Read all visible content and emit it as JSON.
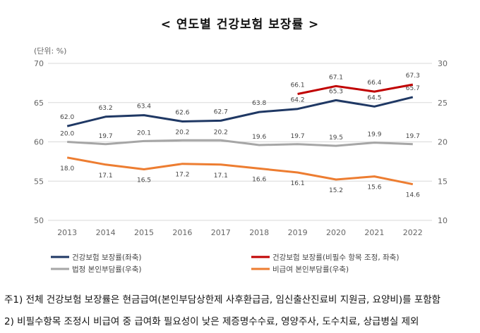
{
  "title": "< 연도별 건강보험 보장률 >",
  "notes": [
    "주1) 전체 건강보험 보장률은 현금급여(본인부담상한제 사후환급금, 임신출산진료비 지원금, 요양비)를 포함함",
    "2) 비필수항목 조정시 비급여 중 급여화 필요성이 낮은 제증명수수료, 영양주사, 도수치료, 상급병실 제외"
  ],
  "chart_data": {
    "type": "line",
    "unit_label": "(단위: %)",
    "x": [
      "2013",
      "2014",
      "2015",
      "2016",
      "2017",
      "2018",
      "2019",
      "2020",
      "2021",
      "2022"
    ],
    "left_axis": {
      "range": [
        50,
        70
      ],
      "ticks": [
        "50",
        "55",
        "60",
        "65",
        "70"
      ]
    },
    "right_axis": {
      "range": [
        10,
        30
      ],
      "ticks": [
        "10",
        "15",
        "20",
        "25",
        "30"
      ]
    },
    "series": [
      {
        "name": "건강보험 보장률(좌축)",
        "axis": "left",
        "color": "#1f3864",
        "values": [
          62.0,
          63.2,
          63.4,
          62.6,
          62.7,
          63.8,
          64.2,
          65.3,
          64.5,
          65.7
        ],
        "labels": [
          "62.0",
          "63.2",
          "63.4",
          "62.6",
          "62.7",
          "63.8",
          "64.2",
          "65.3",
          "64.5",
          "65.7"
        ]
      },
      {
        "name": "건강보험 보장률(비필수 항목 조정, 좌축)",
        "axis": "left",
        "color": "#c00000",
        "values": [
          null,
          null,
          null,
          null,
          null,
          null,
          66.1,
          67.1,
          66.4,
          67.3
        ],
        "labels": [
          "",
          "",
          "",
          "",
          "",
          "",
          "66.1",
          "67.1",
          "66.4",
          "67.3"
        ]
      },
      {
        "name": "법정 본인부담률(우축)",
        "axis": "right",
        "color": "#a6a6a6",
        "values": [
          20.0,
          19.7,
          20.1,
          20.2,
          20.2,
          19.6,
          19.7,
          19.5,
          19.9,
          19.7
        ],
        "labels": [
          "20.0",
          "19.7",
          "20.1",
          "20.2",
          "20.2",
          "19.6",
          "19.7",
          "19.5",
          "19.9",
          "19.7"
        ]
      },
      {
        "name": "비급여 본인부담률(우축)",
        "axis": "right",
        "color": "#ed7d31",
        "values": [
          18.0,
          17.1,
          16.5,
          17.2,
          17.1,
          16.6,
          16.1,
          15.2,
          15.6,
          14.6
        ],
        "labels": [
          "18.0",
          "17.1",
          "16.5",
          "17.2",
          "17.1",
          "16.6",
          "16.1",
          "15.2",
          "15.6",
          "14.6"
        ]
      }
    ],
    "legend_position": "bottom",
    "grid": "horizontal"
  }
}
